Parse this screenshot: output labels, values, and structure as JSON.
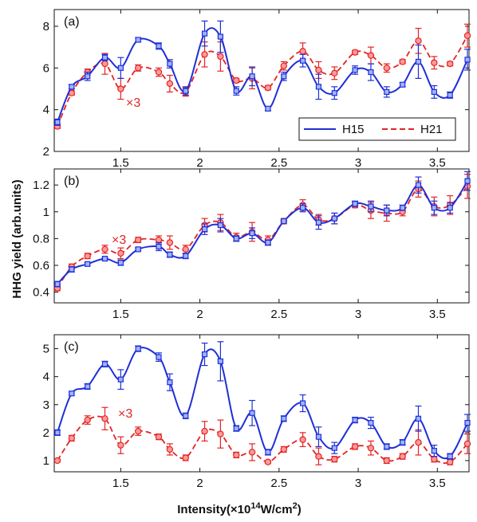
{
  "colors": {
    "h15": "#1f2fd6",
    "h21": "#e32424",
    "h15_marker_fill": "#9fb4ff",
    "h21_marker_fill": "#ff9a9a"
  },
  "legend": {
    "h15": "H15",
    "h21": "H21"
  },
  "xlabel_main": "Intensity(×10",
  "xlabel_exp": "14",
  "xlabel_unit": "W/cm",
  "xlabel_unit_exp": "2",
  "xlabel_close": ")",
  "ylabel": "HHG yield (arb.units)",
  "chart_data": [
    {
      "type": "line",
      "panel_label": "(a)",
      "annotation": "×3",
      "xlim": [
        1.08,
        3.7
      ],
      "ylim": [
        2,
        8.8
      ],
      "yticks": [
        2,
        4,
        6,
        8
      ],
      "xticks": [
        1.5,
        2,
        2.5,
        3,
        3.5
      ],
      "legend_position": "bottom-right",
      "series": [
        {
          "name": "H15",
          "x": [
            1.1,
            1.19,
            1.29,
            1.4,
            1.5,
            1.61,
            1.74,
            1.81,
            1.91,
            2.03,
            2.13,
            2.23,
            2.33,
            2.43,
            2.53,
            2.65,
            2.75,
            2.85,
            2.98,
            3.08,
            3.18,
            3.28,
            3.38,
            3.48,
            3.58,
            3.69
          ],
          "y": [
            3.4,
            5.1,
            5.6,
            6.5,
            6.0,
            7.35,
            7.05,
            6.2,
            4.9,
            7.65,
            7.5,
            4.9,
            5.6,
            4.05,
            5.6,
            6.35,
            5.1,
            4.8,
            5.9,
            5.8,
            4.85,
            5.2,
            6.3,
            4.85,
            4.7,
            6.4
          ],
          "err": [
            0.15,
            0.1,
            0.2,
            0.15,
            0.5,
            0.1,
            0.15,
            0.2,
            0.2,
            0.6,
            0.75,
            0.2,
            0.45,
            0.1,
            0.2,
            0.3,
            0.6,
            0.3,
            0.2,
            0.4,
            0.25,
            0.1,
            0.8,
            0.3,
            0.15,
            0.5
          ]
        },
        {
          "name": "H21",
          "x": [
            1.1,
            1.19,
            1.29,
            1.4,
            1.5,
            1.61,
            1.74,
            1.81,
            1.91,
            2.03,
            2.13,
            2.23,
            2.33,
            2.43,
            2.53,
            2.65,
            2.75,
            2.85,
            2.98,
            3.08,
            3.18,
            3.28,
            3.38,
            3.48,
            3.58,
            3.69
          ],
          "y": [
            3.2,
            4.8,
            5.8,
            6.2,
            5.0,
            6.0,
            5.8,
            5.25,
            4.85,
            6.65,
            6.55,
            5.4,
            5.5,
            5.05,
            6.1,
            6.8,
            5.9,
            5.75,
            6.75,
            6.6,
            6.0,
            6.3,
            7.3,
            6.25,
            6.2,
            7.55
          ],
          "err": [
            0.1,
            0.1,
            0.15,
            0.5,
            0.5,
            0.15,
            0.2,
            0.4,
            0.2,
            0.6,
            0.7,
            0.1,
            0.5,
            0.1,
            0.2,
            0.4,
            0.4,
            0.3,
            0.1,
            0.4,
            0.2,
            0.1,
            0.6,
            0.3,
            0.1,
            0.55
          ]
        }
      ]
    },
    {
      "type": "line",
      "panel_label": "(b)",
      "annotation": "×3",
      "xlim": [
        1.08,
        3.7
      ],
      "ylim": [
        0.32,
        1.32
      ],
      "yticks": [
        0.4,
        0.6,
        0.8,
        1,
        1.2
      ],
      "ytick_labels": [
        "0.4",
        "0.6",
        "0.8",
        "1",
        "1.2"
      ],
      "xticks": [
        1.5,
        2,
        2.5,
        3,
        3.5
      ],
      "series": [
        {
          "name": "H15",
          "x": [
            1.1,
            1.19,
            1.29,
            1.4,
            1.5,
            1.61,
            1.74,
            1.81,
            1.91,
            2.03,
            2.13,
            2.23,
            2.33,
            2.43,
            2.53,
            2.65,
            2.75,
            2.85,
            2.98,
            3.08,
            3.18,
            3.28,
            3.38,
            3.48,
            3.58,
            3.69
          ],
          "y": [
            0.46,
            0.57,
            0.61,
            0.65,
            0.62,
            0.72,
            0.74,
            0.68,
            0.67,
            0.87,
            0.9,
            0.8,
            0.84,
            0.77,
            0.93,
            1.03,
            0.92,
            0.95,
            1.06,
            1.04,
            1.01,
            1.03,
            1.2,
            1.03,
            1.03,
            1.23
          ],
          "err": [
            0.02,
            0.02,
            0.01,
            0.01,
            0.02,
            0.01,
            0.03,
            0.02,
            0.02,
            0.04,
            0.05,
            0.02,
            0.04,
            0.02,
            0.01,
            0.03,
            0.05,
            0.04,
            0.02,
            0.04,
            0.04,
            0.02,
            0.06,
            0.05,
            0.04,
            0.07
          ]
        },
        {
          "name": "H21",
          "x": [
            1.1,
            1.19,
            1.29,
            1.4,
            1.5,
            1.61,
            1.74,
            1.81,
            1.91,
            2.03,
            2.13,
            2.23,
            2.33,
            2.43,
            2.53,
            2.65,
            2.75,
            2.85,
            2.98,
            3.08,
            3.18,
            3.28,
            3.38,
            3.48,
            3.58,
            3.69
          ],
          "y": [
            0.43,
            0.59,
            0.67,
            0.72,
            0.69,
            0.79,
            0.79,
            0.77,
            0.72,
            0.9,
            0.92,
            0.81,
            0.85,
            0.79,
            0.93,
            1.05,
            0.94,
            0.95,
            1.05,
            1.01,
            0.99,
            1.0,
            1.17,
            1.04,
            1.05,
            1.19
          ],
          "err": [
            0.02,
            0.02,
            0.02,
            0.03,
            0.04,
            0.02,
            0.03,
            0.05,
            0.03,
            0.05,
            0.06,
            0.03,
            0.07,
            0.03,
            0.02,
            0.04,
            0.04,
            0.04,
            0.02,
            0.06,
            0.06,
            0.03,
            0.06,
            0.07,
            0.07,
            0.09
          ]
        }
      ]
    },
    {
      "type": "line",
      "panel_label": "(c)",
      "annotation": "×3",
      "xlim": [
        1.08,
        3.7
      ],
      "ylim": [
        0.6,
        5.5
      ],
      "yticks": [
        1,
        2,
        3,
        4,
        5
      ],
      "xticks": [
        1.5,
        2,
        2.5,
        3,
        3.5
      ],
      "series": [
        {
          "name": "H15",
          "x": [
            1.1,
            1.19,
            1.29,
            1.4,
            1.5,
            1.61,
            1.74,
            1.81,
            1.91,
            2.03,
            2.13,
            2.23,
            2.33,
            2.43,
            2.53,
            2.65,
            2.75,
            2.85,
            2.98,
            3.08,
            3.18,
            3.28,
            3.38,
            3.48,
            3.58,
            3.69
          ],
          "y": [
            2.0,
            3.4,
            3.65,
            4.45,
            3.9,
            5.0,
            4.7,
            3.8,
            2.6,
            4.8,
            4.55,
            2.15,
            2.7,
            1.3,
            2.5,
            3.05,
            1.85,
            1.45,
            2.45,
            2.35,
            1.5,
            1.65,
            2.5,
            1.35,
            1.15,
            2.35
          ],
          "err": [
            0.1,
            0.05,
            0.1,
            0.1,
            0.35,
            0.1,
            0.15,
            0.3,
            0.1,
            0.4,
            0.7,
            0.1,
            0.45,
            0.1,
            0.1,
            0.3,
            0.35,
            0.2,
            0.1,
            0.2,
            0.1,
            0.1,
            0.45,
            0.2,
            0.1,
            0.3
          ]
        },
        {
          "name": "H21",
          "x": [
            1.1,
            1.19,
            1.29,
            1.4,
            1.5,
            1.61,
            1.74,
            1.81,
            1.91,
            2.03,
            2.13,
            2.23,
            2.33,
            2.43,
            2.53,
            2.65,
            2.75,
            2.85,
            2.98,
            3.08,
            3.18,
            3.28,
            3.38,
            3.48,
            3.58,
            3.69
          ],
          "y": [
            1.0,
            1.8,
            2.45,
            2.5,
            1.55,
            2.05,
            1.85,
            1.4,
            1.1,
            2.05,
            1.95,
            1.2,
            1.3,
            0.95,
            1.4,
            1.75,
            1.15,
            1.05,
            1.5,
            1.45,
            1.0,
            1.15,
            1.65,
            1.05,
            0.95,
            1.6
          ],
          "err": [
            0.05,
            0.1,
            0.15,
            0.4,
            0.3,
            0.15,
            0.1,
            0.2,
            0.1,
            0.35,
            0.5,
            0.1,
            0.3,
            0.05,
            0.1,
            0.25,
            0.3,
            0.1,
            0.1,
            0.25,
            0.1,
            0.1,
            0.45,
            0.1,
            0.1,
            0.35
          ]
        }
      ]
    }
  ]
}
